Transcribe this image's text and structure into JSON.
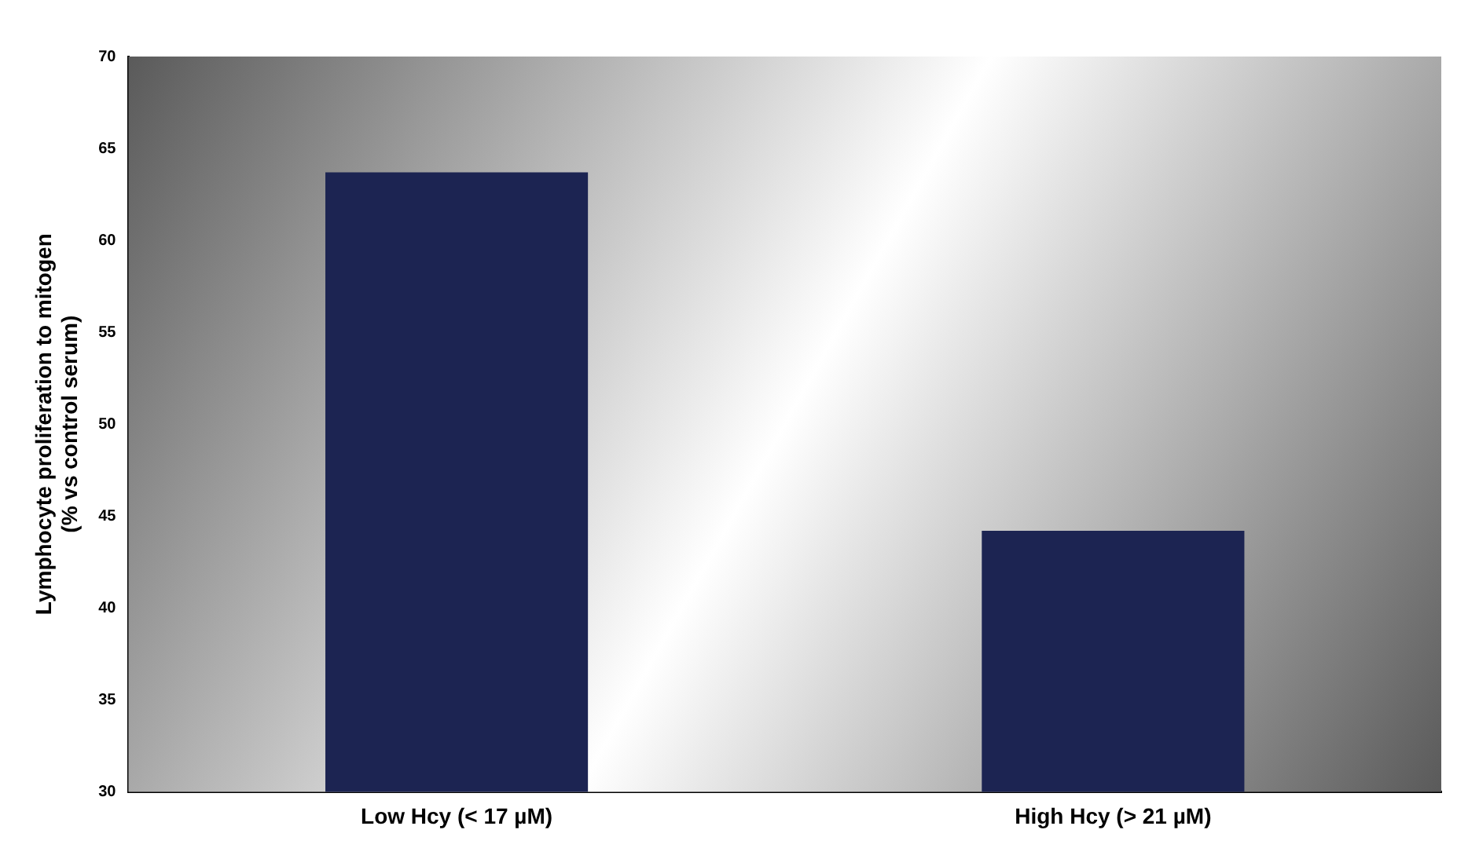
{
  "chart_data": {
    "type": "bar",
    "ylabel": "Lymphocyte proliferation to mitogen\n(% vs control serum)",
    "categories": [
      "Low Hcy (< 17 µM)",
      "High Hcy (> 21 µM)"
    ],
    "values": [
      63.7,
      44.2
    ],
    "color": "#1c2452",
    "ylim": [
      30,
      70
    ],
    "yticks": [
      30,
      35,
      40,
      45,
      50,
      55,
      60,
      65,
      70
    ],
    "grid": false,
    "legend": false
  }
}
